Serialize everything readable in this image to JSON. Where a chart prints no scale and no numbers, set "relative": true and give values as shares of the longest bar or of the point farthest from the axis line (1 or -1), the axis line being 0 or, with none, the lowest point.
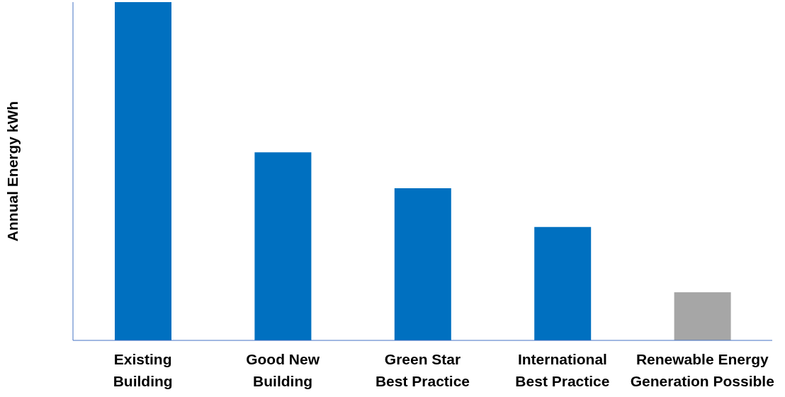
{
  "chart_data": {
    "type": "bar",
    "ylabel": "Annual Energy  kWh",
    "relative": true,
    "categories": [
      "Existing Building",
      "Good New Building",
      "Green Star Best Practice",
      "International Best Practice",
      "Renewable Energy Generation Possible"
    ],
    "values": [
      1,
      0.556,
      0.45,
      0.335,
      0.142
    ],
    "colors": [
      "#0070c0",
      "#0070c0",
      "#0070c0",
      "#0070c0",
      "#a6a6a6"
    ],
    "grid": false,
    "legend": false
  }
}
